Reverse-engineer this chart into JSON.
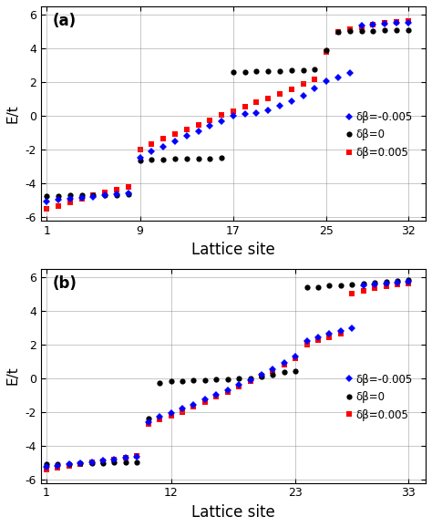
{
  "panel_a": {
    "n_sites": 32,
    "xticks": [
      1,
      9,
      17,
      25,
      32
    ],
    "yticks": [
      -6,
      -4,
      -2,
      0,
      2,
      4,
      6
    ],
    "ylim": [
      -6.2,
      6.5
    ],
    "xlim": [
      0.5,
      33.5
    ],
    "label": "(a)",
    "xlabel": "Lattice site",
    "ylabel": "E/t",
    "black": [
      -4.75,
      -4.72,
      -4.7,
      -4.7,
      -4.68,
      -4.68,
      -4.66,
      -4.63,
      -2.65,
      -2.6,
      -2.57,
      -2.55,
      -2.53,
      -2.52,
      -2.5,
      -2.48,
      2.6,
      2.62,
      2.65,
      2.67,
      2.68,
      2.7,
      2.72,
      2.75,
      3.9,
      5.0,
      5.02,
      5.04,
      5.06,
      5.07,
      5.09,
      5.1
    ],
    "blue": [
      -5.05,
      -4.98,
      -4.9,
      -4.83,
      -4.77,
      -4.7,
      -4.63,
      -4.57,
      -2.45,
      -2.1,
      -1.8,
      -1.5,
      -1.2,
      -0.9,
      -0.6,
      -0.3,
      0.0,
      0.1,
      0.2,
      0.35,
      0.6,
      0.9,
      1.2,
      1.65,
      2.05,
      2.3,
      2.55,
      5.35,
      5.4,
      5.45,
      5.5,
      5.55
    ],
    "red": [
      -5.5,
      -5.32,
      -5.1,
      -4.9,
      -4.7,
      -4.55,
      -4.38,
      -4.2,
      -2.0,
      -1.65,
      -1.35,
      -1.05,
      -0.78,
      -0.52,
      -0.25,
      0.05,
      0.3,
      0.55,
      0.8,
      1.05,
      1.3,
      1.6,
      1.9,
      2.2,
      3.8,
      5.0,
      5.15,
      5.25,
      5.4,
      5.5,
      5.58,
      5.65
    ]
  },
  "panel_b": {
    "n_sites": 33,
    "xticks": [
      1,
      12,
      23,
      33
    ],
    "yticks": [
      -6,
      -4,
      -2,
      0,
      2,
      4,
      6
    ],
    "ylim": [
      -6.2,
      6.5
    ],
    "xlim": [
      0.5,
      34.5
    ],
    "label": "(b)",
    "xlabel": "Lattice site",
    "ylabel": "E/t",
    "black": [
      -5.1,
      -5.08,
      -5.06,
      -5.05,
      -5.03,
      -5.02,
      -5.0,
      -4.99,
      -4.98,
      -2.4,
      -0.25,
      -0.18,
      -0.15,
      -0.12,
      -0.1,
      -0.08,
      -0.05,
      -0.02,
      0.0,
      0.1,
      0.2,
      0.35,
      0.4,
      5.4,
      5.42,
      5.48,
      5.52,
      5.55,
      5.6,
      5.65,
      5.72,
      5.8,
      5.85
    ],
    "blue": [
      -5.25,
      -5.18,
      -5.1,
      -5.02,
      -4.95,
      -4.88,
      -4.8,
      -4.72,
      -4.65,
      -2.6,
      -2.3,
      -2.05,
      -1.8,
      -1.55,
      -1.25,
      -1.0,
      -0.7,
      -0.4,
      -0.1,
      0.2,
      0.55,
      0.9,
      1.3,
      2.2,
      2.45,
      2.65,
      2.8,
      2.95,
      5.5,
      5.55,
      5.6,
      5.65,
      5.7
    ],
    "red": [
      -5.4,
      -5.3,
      -5.2,
      -5.1,
      -5.0,
      -4.9,
      -4.8,
      -4.7,
      -4.6,
      -2.7,
      -2.45,
      -2.2,
      -2.0,
      -1.7,
      -1.4,
      -1.1,
      -0.8,
      -0.5,
      -0.18,
      0.15,
      0.45,
      0.8,
      1.2,
      2.0,
      2.25,
      2.45,
      2.65,
      5.0,
      5.2,
      5.32,
      5.45,
      5.55,
      5.62
    ]
  },
  "legend_labels": [
    "δβ=-0.005",
    "δβ=0",
    "δβ=0.005"
  ],
  "figsize": [
    4.74,
    5.78
  ],
  "dpi": 100
}
